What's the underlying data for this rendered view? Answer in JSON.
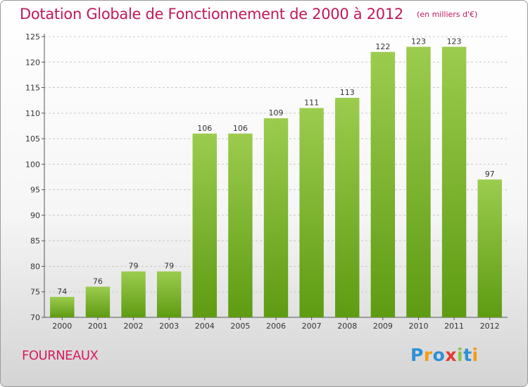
{
  "chart_data": {
    "type": "bar",
    "title": "Dotation Globale de Fonctionnement de 2000 à 2012",
    "subtitle": "(en milliers d'€)",
    "categories": [
      "2000",
      "2001",
      "2002",
      "2003",
      "2004",
      "2005",
      "2006",
      "2007",
      "2008",
      "2009",
      "2010",
      "2011",
      "2012"
    ],
    "values": [
      74,
      76,
      79,
      79,
      106,
      106,
      109,
      111,
      113,
      122,
      123,
      123,
      97
    ],
    "ylim": [
      70,
      125
    ],
    "yticks": [
      70,
      75,
      80,
      85,
      90,
      95,
      100,
      105,
      110,
      115,
      120,
      125
    ],
    "grid": true,
    "bar_color_top": "#9ccc4e",
    "bar_color_bottom": "#5e9b12",
    "location": "FOURNEAUX"
  },
  "logo": {
    "letters": [
      "P",
      "r",
      "o",
      "x",
      "i",
      "t",
      "i"
    ],
    "colors": [
      "#2f8fd6",
      "#f39c12",
      "#2f8fd6",
      "#e53935",
      "#8bc34a",
      "#2f8fd6",
      "#f39c12"
    ]
  },
  "title_color": "#c2185b"
}
